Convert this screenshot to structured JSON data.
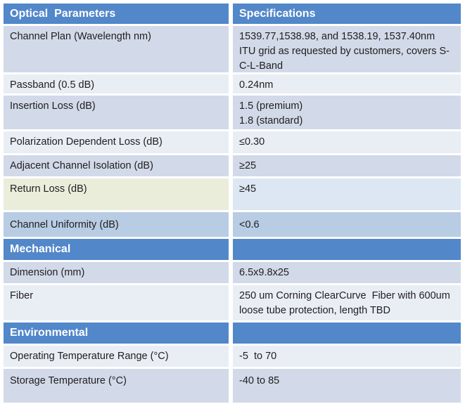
{
  "colors": {
    "header_bg": "#5287c9",
    "header_text": "#ffffff",
    "band_dark": "#d2d9e8",
    "band_light": "#e9edf4",
    "highlight_cream": "#ebeddb",
    "highlight_pale_blue": "#dde7f3",
    "highlight_blue": "#b8cce4",
    "body_text": "#1f1f1f"
  },
  "table": {
    "header": {
      "param": "Optical  Parameters",
      "spec": "Specifications"
    },
    "rows": {
      "channel_plan": {
        "param": "Channel Plan (Wavelength nm)",
        "spec": "1539.77,1538.98, and 1538.19, 1537.40nm\nITU grid as requested by customers, covers S-C-L-Band"
      },
      "passband": {
        "param": "Passband (0.5 dB)",
        "spec": "0.24nm"
      },
      "insertion_loss": {
        "param": "Insertion Loss (dB)",
        "spec": "1.5 (premium)\n1.8 (standard)"
      },
      "polarization_dependent_loss": {
        "param": "Polarization Dependent Loss (dB)",
        "spec": "≤0.30"
      },
      "adjacent_channel_isolation": {
        "param": "Adjacent Channel Isolation (dB)",
        "spec": "≥25"
      },
      "return_loss": {
        "param": "Return Loss (dB)",
        "spec": "≥45"
      },
      "channel_uniformity": {
        "param": "Channel Uniformity (dB)",
        "spec": "<0.6"
      },
      "mechanical_section": {
        "param": "Mechanical",
        "spec": ""
      },
      "dimension": {
        "param": "Dimension (mm)",
        "spec": "6.5x9.8x25"
      },
      "fiber": {
        "param": "Fiber",
        "spec": "250 um Corning ClearCurve  Fiber with 600um loose tube protection, length TBD"
      },
      "environmental_section": {
        "param": "Environmental",
        "spec": ""
      },
      "operating_temperature_range": {
        "param": "Operating Temperature Range (°C)",
        "spec": "-5  to 70"
      },
      "storage_temperature": {
        "param": "Storage Temperature (°C)",
        "spec": "-40 to 85"
      }
    }
  }
}
